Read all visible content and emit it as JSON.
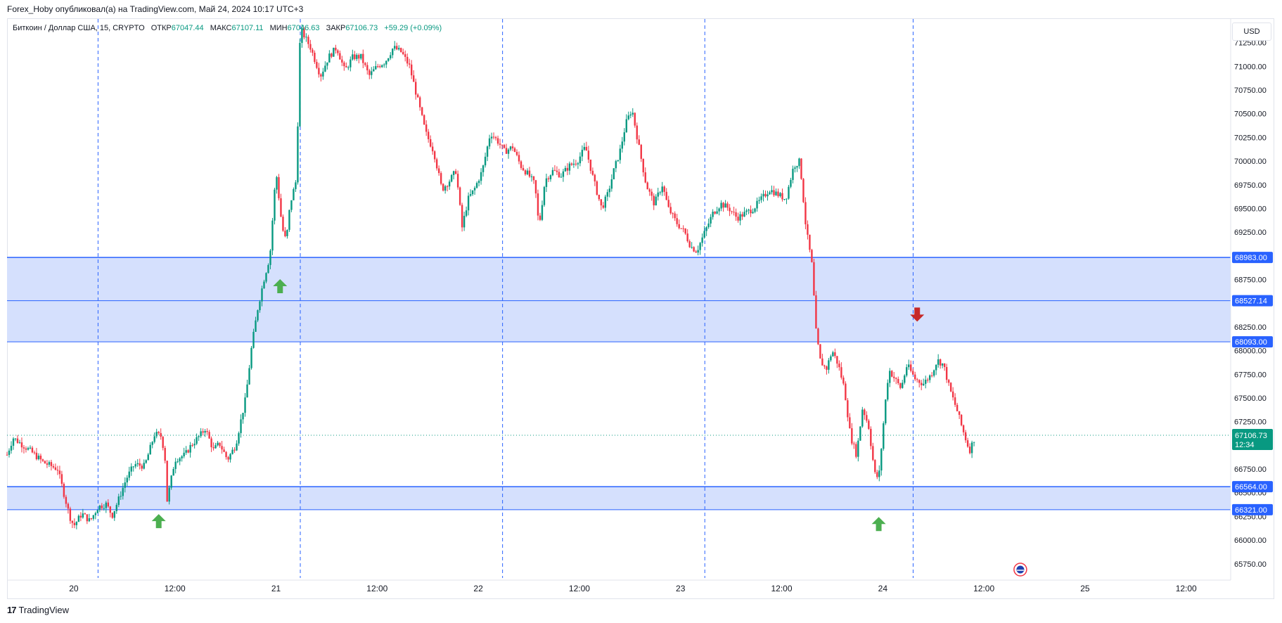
{
  "header": {
    "publisher": "Forex_Hoby опубликовал(а) на TradingView.com, Май 24, 2024 10:17 UTC+3"
  },
  "legend": {
    "symbol": "Биткоин / Доллар США, 15, CRYPTO",
    "open_label": "ОТКР",
    "open": "67047.44",
    "high_label": "МАКС",
    "high": "67107.11",
    "low_label": "МИН",
    "low": "67046.63",
    "close_label": "ЗАКР",
    "close": "67106.73",
    "change": "+59.29 (+0.09%)"
  },
  "currency_button": {
    "label": "USD"
  },
  "footer": {
    "brand_mark": "17",
    "brand": "TradingView"
  },
  "colors": {
    "up": "#089981",
    "down": "#f23645",
    "zone_fill": "#d5e0fd",
    "zone_line": "#2962ff",
    "vline": "#2962ff",
    "arrow_up": "#4caf50",
    "arrow_down": "#c62828",
    "last_price": "#089981"
  },
  "chart_data": {
    "type": "candlestick",
    "title": "Биткоин / Доллар США, 15, CRYPTO",
    "currency": "USD",
    "ylim": [
      65600,
      71500
    ],
    "y_ticks": [
      "65750.00",
      "66000.00",
      "66250.00",
      "66500.00",
      "66750.00",
      "67000.00",
      "67250.00",
      "67500.00",
      "67750.00",
      "68000.00",
      "68250.00",
      "68500.00",
      "68750.00",
      "69000.00",
      "69250.00",
      "69500.00",
      "69750.00",
      "70000.00",
      "70250.00",
      "70500.00",
      "70750.00",
      "71000.00",
      "71250.00"
    ],
    "x_ticks": [
      {
        "label": "20",
        "day": 20.0
      },
      {
        "label": "12:00",
        "day": 20.5
      },
      {
        "label": "21",
        "day": 21.0
      },
      {
        "label": "12:00",
        "day": 21.5
      },
      {
        "label": "22",
        "day": 22.0
      },
      {
        "label": "12:00",
        "day": 22.5
      },
      {
        "label": "23",
        "day": 23.0
      },
      {
        "label": "12:00",
        "day": 23.5
      },
      {
        "label": "24",
        "day": 24.0
      },
      {
        "label": "12:00",
        "day": 24.5
      },
      {
        "label": "25",
        "day": 25.0
      },
      {
        "label": "12:00",
        "day": 25.5
      }
    ],
    "x_range_day": [
      19.67,
      25.72
    ],
    "vertical_lines_day": [
      20.12,
      21.12,
      22.12,
      23.12,
      24.15
    ],
    "zones": [
      {
        "top": "68983.00",
        "mid": "68527.14",
        "bottom": "68093.00"
      },
      {
        "top": "66564.00",
        "bottom": "66321.00"
      }
    ],
    "price_labels": [
      "68983.00",
      "68527.14",
      "68093.00",
      "66564.00",
      "66321.00"
    ],
    "last_price": {
      "value": "67106.73",
      "timer": "12:34"
    },
    "arrows": [
      {
        "dir": "up",
        "day": 20.42,
        "price": 66200
      },
      {
        "dir": "up",
        "day": 21.02,
        "price": 68680
      },
      {
        "dir": "up",
        "day": 23.98,
        "price": 66170
      },
      {
        "dir": "down",
        "day": 24.17,
        "price": 68380
      }
    ],
    "event_marker_day": 24.68,
    "path": [
      [
        19.67,
        66900
      ],
      [
        19.7,
        67080
      ],
      [
        19.78,
        66950
      ],
      [
        19.85,
        66820
      ],
      [
        19.92,
        66750
      ],
      [
        19.98,
        66250
      ],
      [
        20.0,
        66150
      ],
      [
        20.04,
        66280
      ],
      [
        20.08,
        66200
      ],
      [
        20.12,
        66350
      ],
      [
        20.16,
        66380
      ],
      [
        20.19,
        66260
      ],
      [
        20.22,
        66420
      ],
      [
        20.26,
        66650
      ],
      [
        20.3,
        66800
      ],
      [
        20.35,
        66780
      ],
      [
        20.4,
        67120
      ],
      [
        20.43,
        67100
      ],
      [
        20.45,
        66920
      ],
      [
        20.46,
        66400
      ],
      [
        20.5,
        66850
      ],
      [
        20.55,
        66900
      ],
      [
        20.58,
        67000
      ],
      [
        20.63,
        67120
      ],
      [
        20.65,
        67180
      ],
      [
        20.69,
        66950
      ],
      [
        20.72,
        67020
      ],
      [
        20.76,
        66850
      ],
      [
        20.8,
        67000
      ],
      [
        20.85,
        67500
      ],
      [
        20.88,
        68050
      ],
      [
        20.91,
        68450
      ],
      [
        20.94,
        68750
      ],
      [
        20.97,
        69000
      ],
      [
        21.0,
        69900
      ],
      [
        21.03,
        69300
      ],
      [
        21.05,
        69150
      ],
      [
        21.07,
        69550
      ],
      [
        21.1,
        69800
      ],
      [
        21.12,
        71400
      ],
      [
        21.17,
        71200
      ],
      [
        21.22,
        70900
      ],
      [
        21.26,
        71100
      ],
      [
        21.3,
        71200
      ],
      [
        21.34,
        70950
      ],
      [
        21.38,
        71100
      ],
      [
        21.42,
        71100
      ],
      [
        21.46,
        70900
      ],
      [
        21.5,
        71000
      ],
      [
        21.54,
        71050
      ],
      [
        21.58,
        71200
      ],
      [
        21.62,
        71150
      ],
      [
        21.66,
        71000
      ],
      [
        21.7,
        70650
      ],
      [
        21.74,
        70300
      ],
      [
        21.78,
        70100
      ],
      [
        21.82,
        69700
      ],
      [
        21.86,
        69800
      ],
      [
        21.89,
        69900
      ],
      [
        21.92,
        69300
      ],
      [
        21.95,
        69600
      ],
      [
        21.98,
        69700
      ],
      [
        22.02,
        69900
      ],
      [
        22.06,
        70300
      ],
      [
        22.1,
        70200
      ],
      [
        22.13,
        70100
      ],
      [
        22.17,
        70150
      ],
      [
        22.21,
        69950
      ],
      [
        22.25,
        69850
      ],
      [
        22.28,
        69750
      ],
      [
        22.3,
        69300
      ],
      [
        22.33,
        69800
      ],
      [
        22.37,
        69900
      ],
      [
        22.41,
        69850
      ],
      [
        22.45,
        69950
      ],
      [
        22.49,
        70000
      ],
      [
        22.53,
        70150
      ],
      [
        22.57,
        69800
      ],
      [
        22.61,
        69500
      ],
      [
        22.64,
        69650
      ],
      [
        22.67,
        69900
      ],
      [
        22.7,
        70100
      ],
      [
        22.73,
        70400
      ],
      [
        22.76,
        70550
      ],
      [
        22.79,
        70200
      ],
      [
        22.83,
        69750
      ],
      [
        22.87,
        69550
      ],
      [
        22.91,
        69750
      ],
      [
        22.94,
        69500
      ],
      [
        22.98,
        69350
      ],
      [
        23.02,
        69250
      ],
      [
        23.05,
        69100
      ],
      [
        23.08,
        69050
      ],
      [
        23.12,
        69250
      ],
      [
        23.16,
        69450
      ],
      [
        23.2,
        69550
      ],
      [
        23.24,
        69500
      ],
      [
        23.28,
        69400
      ],
      [
        23.32,
        69450
      ],
      [
        23.36,
        69500
      ],
      [
        23.4,
        69600
      ],
      [
        23.44,
        69700
      ],
      [
        23.48,
        69650
      ],
      [
        23.52,
        69600
      ],
      [
        23.56,
        69950
      ],
      [
        23.59,
        70000
      ],
      [
        23.62,
        69300
      ],
      [
        23.65,
        68900
      ],
      [
        23.67,
        68200
      ],
      [
        23.69,
        67900
      ],
      [
        23.72,
        67800
      ],
      [
        23.75,
        68000
      ],
      [
        23.78,
        67850
      ],
      [
        23.81,
        67600
      ],
      [
        23.84,
        67100
      ],
      [
        23.87,
        66900
      ],
      [
        23.9,
        67400
      ],
      [
        23.93,
        67200
      ],
      [
        23.96,
        66700
      ],
      [
        23.98,
        66650
      ],
      [
        24.01,
        67400
      ],
      [
        24.03,
        67800
      ],
      [
        24.06,
        67700
      ],
      [
        24.09,
        67600
      ],
      [
        24.12,
        67850
      ],
      [
        24.16,
        67700
      ],
      [
        24.2,
        67650
      ],
      [
        24.24,
        67750
      ],
      [
        24.27,
        67900
      ],
      [
        24.3,
        67850
      ],
      [
        24.33,
        67600
      ],
      [
        24.37,
        67350
      ],
      [
        24.39,
        67200
      ],
      [
        24.42,
        67000
      ],
      [
        24.43,
        66950
      ],
      [
        24.45,
        67060
      ],
      [
        24.46,
        67107
      ]
    ]
  }
}
